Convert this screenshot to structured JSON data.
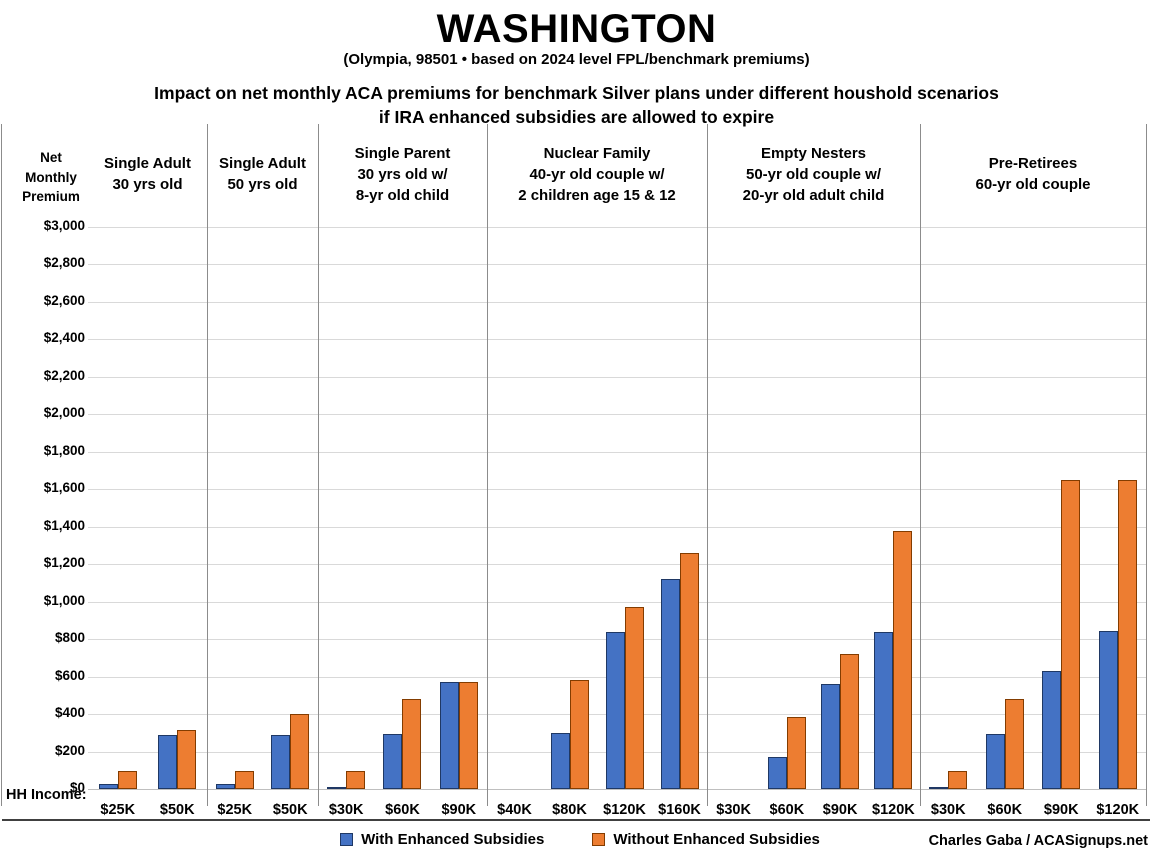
{
  "header": {
    "title": "WASHINGTON",
    "subtitle": "(Olympia, 98501 • based on 2024 level FPL/benchmark premiums)",
    "heading": "Impact on net monthly ACA premiums for benchmark Silver plans under different houshold scenarios\nif IRA enhanced subsidies are allowed to expire"
  },
  "axis": {
    "y_title": "Net\nMonthly\nPremium",
    "hh_income_label": "HH Income:"
  },
  "legend": {
    "with_label": "With Enhanced Subsidies",
    "without_label": "Without Enhanced Subsidies"
  },
  "credit": "Charles Gaba / ACASignups.net",
  "colors": {
    "with_fill": "#4472C4",
    "with_border": "#1F3864",
    "without_fill": "#ED7D31",
    "without_border": "#833C00"
  },
  "chart_data": {
    "type": "bar",
    "title": "Impact on net monthly ACA premiums for benchmark Silver plans under different houshold scenarios if IRA enhanced subsidies are allowed to expire",
    "ylabel": "Net Monthly Premium",
    "xlabel": "HH Income",
    "ylim": [
      0,
      3000
    ],
    "ytick_step": 200,
    "grid": "horizontal",
    "legend_position": "bottom",
    "series_names": [
      "With Enhanced Subsidies",
      "Without Enhanced Subsidies"
    ],
    "groups": [
      {
        "label": "Single Adult\n30 yrs old",
        "categories": [
          "$25K",
          "$50K"
        ],
        "series": [
          {
            "name": "With Enhanced Subsidies",
            "values": [
              27,
              290
            ]
          },
          {
            "name": "Without Enhanced Subsidies",
            "values": [
              95,
              315
            ]
          }
        ]
      },
      {
        "label": "Single Adult\n50 yrs old",
        "categories": [
          "$25K",
          "$50K"
        ],
        "series": [
          {
            "name": "With Enhanced Subsidies",
            "values": [
              27,
              290
            ]
          },
          {
            "name": "Without Enhanced Subsidies",
            "values": [
              95,
              400
            ]
          }
        ]
      },
      {
        "label": "Single Parent\n30 yrs old w/\n8-yr old child",
        "categories": [
          "$30K",
          "$60K",
          "$90K"
        ],
        "series": [
          {
            "name": "With Enhanced Subsidies",
            "values": [
              8,
              295,
              570
            ]
          },
          {
            "name": "Without Enhanced Subsidies",
            "values": [
              95,
              480,
              570
            ]
          }
        ]
      },
      {
        "label": "Nuclear Family\n40-yr old couple w/\n2 children age 15 & 12",
        "categories": [
          "$40K",
          "$80K",
          "$120K",
          "$160K"
        ],
        "series": [
          {
            "name": "With Enhanced Subsidies",
            "values": [
              0,
              300,
              840,
              1120
            ]
          },
          {
            "name": "Without Enhanced Subsidies",
            "values": [
              0,
              580,
              970,
              1260
            ]
          }
        ]
      },
      {
        "label": "Empty Nesters\n50-yr old couple w/\n20-yr old adult child",
        "categories": [
          "$30K",
          "$60K",
          "$90K",
          "$120K"
        ],
        "series": [
          {
            "name": "With Enhanced Subsidies",
            "values": [
              0,
              172,
              560,
              840
            ]
          },
          {
            "name": "Without Enhanced Subsidies",
            "values": [
              0,
              385,
              720,
              1378
            ]
          }
        ]
      },
      {
        "label": "Pre-Retirees\n60-yr old couple",
        "categories": [
          "$30K",
          "$60K",
          "$90K",
          "$120K"
        ],
        "series": [
          {
            "name": "With Enhanced Subsidies",
            "values": [
              9,
              295,
              630,
              845
            ]
          },
          {
            "name": "Without Enhanced Subsidies",
            "values": [
              95,
              480,
              1650,
              1650
            ]
          }
        ]
      }
    ]
  }
}
